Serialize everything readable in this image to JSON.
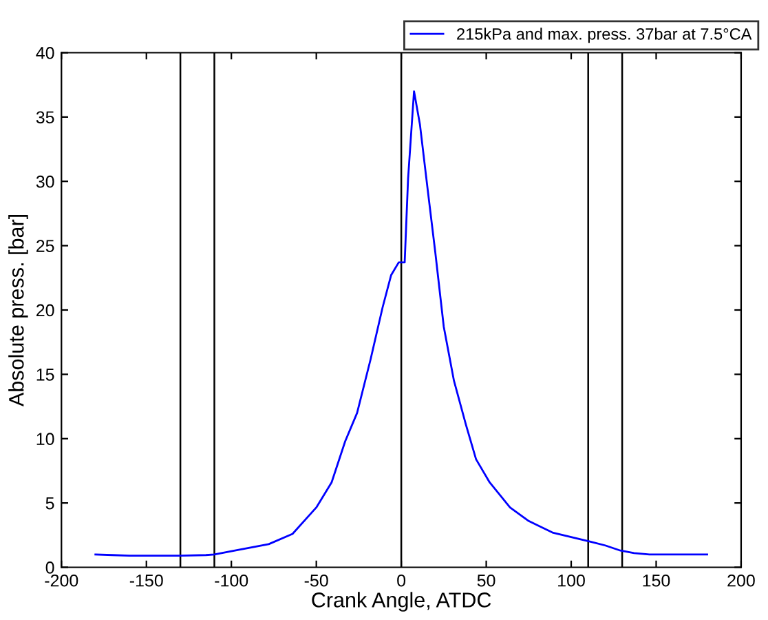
{
  "chart_data": {
    "type": "line",
    "xlabel": "Crank Angle, ATDC",
    "ylabel": "Absolute press. [bar]",
    "x": [
      -180,
      -170,
      -160,
      -150,
      -130,
      -115,
      -110,
      -100,
      -78,
      -64,
      -50,
      -41,
      -33,
      -26,
      -18,
      -11,
      -6,
      -1.5,
      2,
      4,
      7.5,
      11,
      15.5,
      20,
      25,
      31,
      38,
      44,
      52,
      64,
      75,
      89,
      111,
      120,
      129,
      137,
      146,
      180
    ],
    "series": [
      {
        "name": "215kPa and max. press. 37bar at 7.5°CA",
        "color": "#0000ff",
        "values": [
          1.0,
          0.95,
          0.9,
          0.9,
          0.9,
          0.95,
          1.0,
          1.25,
          1.8,
          2.6,
          4.65,
          6.6,
          9.8,
          12,
          16.2,
          20.2,
          22.7,
          23.7,
          23.7,
          30.2,
          37,
          34.4,
          29.4,
          24.5,
          18.7,
          14.5,
          11.1,
          8.4,
          6.6,
          4.65,
          3.6,
          2.7,
          2.0,
          1.7,
          1.3,
          1.1,
          1.0,
          1.0
        ]
      }
    ],
    "ref_lines": [
      {
        "axis": "x",
        "value": -130,
        "color": "#000000"
      },
      {
        "axis": "x",
        "value": -110,
        "color": "#000000"
      },
      {
        "axis": "x",
        "value": 0,
        "color": "#000000"
      },
      {
        "axis": "x",
        "value": 110,
        "color": "#000000"
      },
      {
        "axis": "x",
        "value": 130,
        "color": "#000000"
      }
    ],
    "xlim": [
      -200,
      200
    ],
    "xticks": [
      -200,
      -150,
      -100,
      -50,
      0,
      50,
      100,
      150,
      200
    ],
    "ylim": [
      0,
      40
    ],
    "yticks": [
      0,
      5,
      10,
      15,
      20,
      25,
      30,
      35,
      40
    ],
    "grid": false,
    "legend": "top right",
    "marker": "none",
    "line_style": "solid"
  }
}
